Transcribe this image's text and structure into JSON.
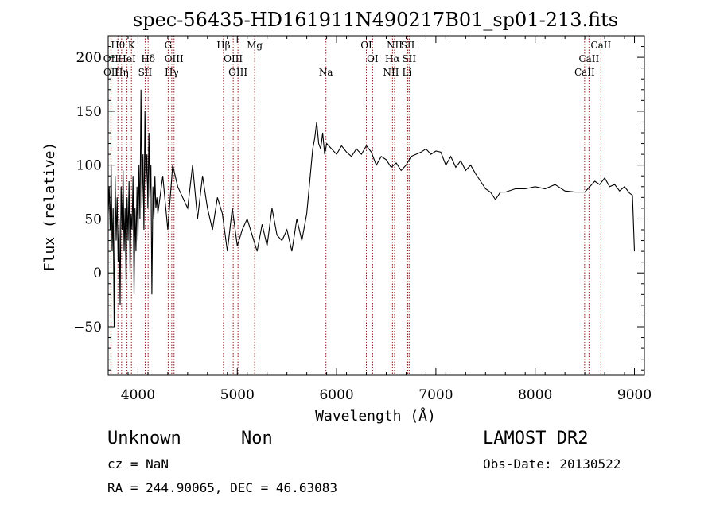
{
  "chart_data": {
    "type": "line",
    "title": "spec-56435-HD161911N490217B01_sp01-213.fits",
    "xlabel": "Wavelength (Å)",
    "ylabel": "Flux (relative)",
    "xlim": [
      3700,
      9100
    ],
    "ylim": [
      -95,
      220
    ],
    "xticks": [
      4000,
      5000,
      6000,
      7000,
      8000,
      9000
    ],
    "yticks": [
      -50,
      0,
      50,
      100,
      150,
      200
    ],
    "grid": false,
    "line_color": "#000000",
    "marker_color": "#8b1a1a",
    "series": [
      {
        "x": [
          3700,
          3710,
          3720,
          3730,
          3740,
          3750,
          3760,
          3770,
          3780,
          3790,
          3800,
          3810,
          3820,
          3830,
          3840,
          3850,
          3860,
          3870,
          3880,
          3890,
          3900,
          3910,
          3920,
          3930,
          3940,
          3950,
          3960,
          3970,
          3980,
          3990,
          4000,
          4010,
          4020,
          4030,
          4040,
          4050,
          4060,
          4070,
          4080,
          4090,
          4100,
          4110,
          4120,
          4130,
          4140,
          4150,
          4160,
          4170,
          4180,
          4190,
          4200,
          4250,
          4300,
          4350,
          4400,
          4450,
          4500,
          4550,
          4600,
          4650,
          4700,
          4750,
          4800,
          4850,
          4900,
          4950,
          5000,
          5050,
          5100,
          5150,
          5200,
          5250,
          5300,
          5350,
          5400,
          5450,
          5500,
          5550,
          5600,
          5650,
          5700,
          5720,
          5740,
          5760,
          5780,
          5800,
          5820,
          5840,
          5860,
          5880,
          5900,
          5950,
          6000,
          6050,
          6100,
          6150,
          6200,
          6250,
          6300,
          6350,
          6400,
          6450,
          6500,
          6550,
          6600,
          6650,
          6700,
          6750,
          6800,
          6850,
          6900,
          6950,
          7000,
          7050,
          7100,
          7150,
          7200,
          7250,
          7300,
          7350,
          7400,
          7450,
          7500,
          7550,
          7600,
          7650,
          7700,
          7800,
          7900,
          8000,
          8100,
          8200,
          8300,
          8400,
          8500,
          8550,
          8600,
          8650,
          8700,
          8750,
          8800,
          8850,
          8900,
          8950,
          8980,
          9000
        ],
        "y": [
          55,
          80,
          40,
          100,
          20,
          60,
          -50,
          90,
          30,
          70,
          10,
          50,
          -30,
          80,
          40,
          95,
          20,
          60,
          -10,
          70,
          30,
          85,
          0,
          55,
          40,
          90,
          -20,
          60,
          20,
          80,
          30,
          100,
          50,
          170,
          60,
          110,
          40,
          150,
          80,
          110,
          60,
          130,
          70,
          100,
          -20,
          80,
          50,
          90,
          60,
          70,
          55,
          90,
          40,
          100,
          80,
          70,
          60,
          100,
          50,
          90,
          60,
          40,
          70,
          55,
          20,
          60,
          25,
          40,
          50,
          35,
          20,
          45,
          25,
          60,
          35,
          30,
          40,
          20,
          50,
          30,
          55,
          75,
          95,
          115,
          125,
          140,
          120,
          115,
          130,
          110,
          120,
          115,
          110,
          118,
          112,
          108,
          115,
          110,
          118,
          112,
          100,
          108,
          105,
          98,
          102,
          95,
          100,
          108,
          110,
          112,
          115,
          110,
          113,
          112,
          100,
          108,
          98,
          104,
          95,
          100,
          92,
          85,
          78,
          75,
          68,
          75,
          75,
          78,
          78,
          80,
          78,
          82,
          76,
          75,
          75,
          80,
          85,
          82,
          88,
          80,
          82,
          76,
          80,
          74,
          72,
          20
        ]
      }
    ],
    "line_markers": [
      {
        "label": "Hθ",
        "x": 3798,
        "row": 0
      },
      {
        "label": "K",
        "x": 3934,
        "row": 0
      },
      {
        "label": "G",
        "x": 4304,
        "row": 0
      },
      {
        "label": "Hβ",
        "x": 4861,
        "row": 0
      },
      {
        "label": "Mg",
        "x": 5175,
        "row": 0
      },
      {
        "label": "OI",
        "x": 6300,
        "row": 0
      },
      {
        "label": "NII",
        "x": 6584,
        "row": 0
      },
      {
        "label": "SII",
        "x": 6717,
        "row": 0
      },
      {
        "label": "CaII",
        "x": 8662,
        "row": 0
      },
      {
        "label": "OII",
        "x": 3727,
        "row": 1
      },
      {
        "label": "HeI",
        "x": 3889,
        "row": 1
      },
      {
        "label": "Hδ",
        "x": 4102,
        "row": 1
      },
      {
        "label": "OIII",
        "x": 4363,
        "row": 1
      },
      {
        "label": "OIII",
        "x": 4959,
        "row": 1
      },
      {
        "label": "OI",
        "x": 6363,
        "row": 1
      },
      {
        "label": "Hα",
        "x": 6563,
        "row": 1
      },
      {
        "label": "SII",
        "x": 6731,
        "row": 1
      },
      {
        "label": "CaII",
        "x": 8542,
        "row": 1
      },
      {
        "label": "OII",
        "x": 3729,
        "row": 2
      },
      {
        "label": "Hη",
        "x": 3835,
        "row": 2
      },
      {
        "label": "SII",
        "x": 4072,
        "row": 2
      },
      {
        "label": "Hγ",
        "x": 4340,
        "row": 2
      },
      {
        "label": "OIII",
        "x": 5007,
        "row": 2
      },
      {
        "label": "Na",
        "x": 5893,
        "row": 2
      },
      {
        "label": "NII",
        "x": 6548,
        "row": 2
      },
      {
        "label": "Li",
        "x": 6708,
        "row": 2
      },
      {
        "label": "CaII",
        "x": 8498,
        "row": 2
      }
    ]
  },
  "info": {
    "class": "Unknown",
    "subclass": "Non",
    "cz": "cz = NaN",
    "coords": "RA = 244.90065, DEC =  46.63083",
    "survey": "LAMOST DR2",
    "obs_date": "Obs-Date: 20130522"
  }
}
